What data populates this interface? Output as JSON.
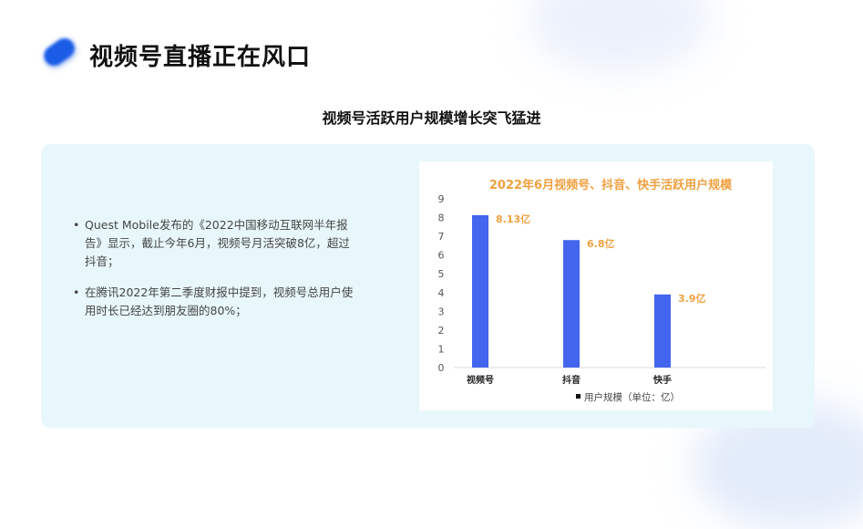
{
  "header": {
    "title": "视频号直播正在风口"
  },
  "section": {
    "subtitle": "视频号活跃用户规模增长突飞猛进"
  },
  "bullets": [
    "Quest Mobile发布的《2022中国移动互联网半年报告》显示，截止今年6月，视频号月活突破8亿，超过抖音；",
    "在腾讯2022年第二季度财报中提到，视频号总用户使用时长已经达到朋友圈的80%；"
  ],
  "bullet_marker": "•",
  "chart_data": {
    "type": "bar",
    "title": "2022年6月视频号、抖音、快手活跃用户规模",
    "categories": [
      "视频号",
      "抖音",
      "快手"
    ],
    "series": [
      {
        "name": "用户规模（单位：亿）",
        "values": [
          8.13,
          6.8,
          3.9
        ]
      }
    ],
    "data_labels": [
      "8.13亿",
      "6.8亿",
      "3.9亿"
    ],
    "ylim": [
      0,
      9
    ],
    "yticks": [
      "0",
      "1",
      "2",
      "3",
      "4",
      "5",
      "6",
      "7",
      "8",
      "9"
    ],
    "grid": false,
    "legend": "bottom",
    "colors": {
      "bar": "#4466ee",
      "title": "#f0a040",
      "label": "#f0a040"
    }
  }
}
